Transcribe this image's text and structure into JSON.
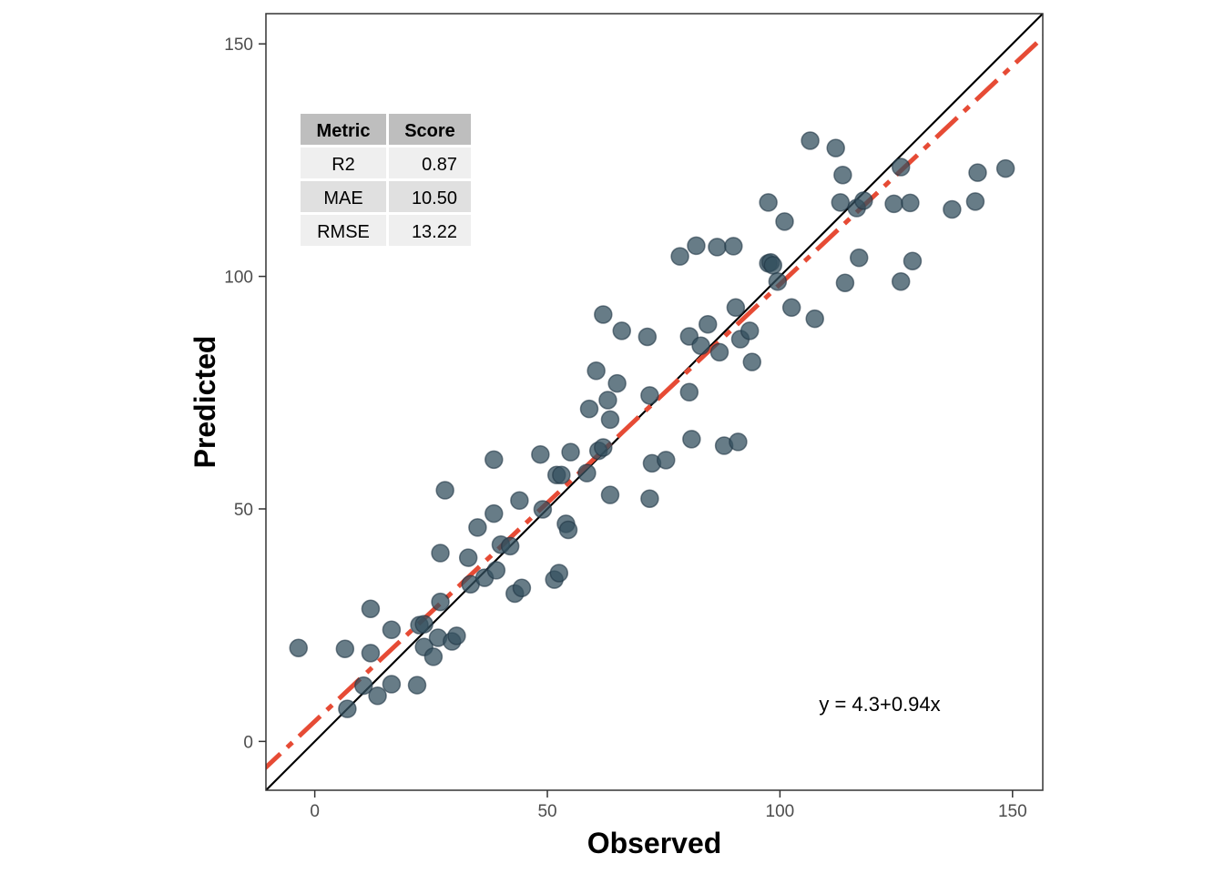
{
  "chart_data": {
    "type": "scatter",
    "title": "",
    "xlabel": "Observed",
    "ylabel": "Predicted",
    "xlim": [
      -10.5,
      156.5
    ],
    "ylim": [
      -10.5,
      156.5
    ],
    "x_ticks": [
      0,
      50,
      100,
      150
    ],
    "y_ticks": [
      0,
      50,
      100,
      150
    ],
    "x_tick_labels": [
      "0",
      "50",
      "100",
      "150"
    ],
    "y_tick_labels": [
      "0",
      "50",
      "100",
      "150"
    ],
    "grid": false,
    "point_color": "#34505f",
    "identity_line_color": "#000000",
    "fit_line_color": "#e64b35",
    "fit": {
      "intercept": 4.3,
      "slope": 0.94,
      "label": "y = 4.3+0.94x"
    },
    "metrics_table": {
      "headers": [
        "Metric",
        "Score"
      ],
      "rows": [
        {
          "metric": "R2",
          "score": "0.87"
        },
        {
          "metric": "MAE",
          "score": "10.50"
        },
        {
          "metric": "RMSE",
          "score": "13.22"
        }
      ]
    },
    "points": [
      [
        -3.5,
        20.1
      ],
      [
        6.5,
        19.9
      ],
      [
        7,
        7
      ],
      [
        10.5,
        12
      ],
      [
        12,
        28.5
      ],
      [
        12,
        19
      ],
      [
        13.5,
        9.8
      ],
      [
        16.5,
        24
      ],
      [
        16.5,
        12.3
      ],
      [
        22,
        12.1
      ],
      [
        22.5,
        25
      ],
      [
        23.5,
        25.2
      ],
      [
        23.5,
        20.3
      ],
      [
        25.5,
        18.2
      ],
      [
        26.5,
        22.3
      ],
      [
        27,
        30
      ],
      [
        27,
        40.5
      ],
      [
        28,
        54
      ],
      [
        29.5,
        21.5
      ],
      [
        30.5,
        22.7
      ],
      [
        33,
        39.5
      ],
      [
        33.5,
        33.8
      ],
      [
        35,
        46
      ],
      [
        36.5,
        35.2
      ],
      [
        38.5,
        49
      ],
      [
        38.5,
        60.6
      ],
      [
        39,
        36.8
      ],
      [
        40,
        42.3
      ],
      [
        42,
        42
      ],
      [
        43,
        31.8
      ],
      [
        44,
        51.8
      ],
      [
        44.5,
        33
      ],
      [
        48.5,
        61.7
      ],
      [
        49,
        49.9
      ],
      [
        51.5,
        34.8
      ],
      [
        52,
        57.3
      ],
      [
        52.5,
        36.2
      ],
      [
        53,
        57.3
      ],
      [
        54,
        46.8
      ],
      [
        54.5,
        45.5
      ],
      [
        55,
        62.2
      ],
      [
        58.5,
        57.7
      ],
      [
        59,
        71.5
      ],
      [
        60.5,
        79.7
      ],
      [
        61,
        62.5
      ],
      [
        62,
        63.2
      ],
      [
        62,
        91.8
      ],
      [
        63,
        73.4
      ],
      [
        63.5,
        69.2
      ],
      [
        63.5,
        53
      ],
      [
        65,
        77
      ],
      [
        66,
        88.3
      ],
      [
        71.5,
        87
      ],
      [
        72,
        74.4
      ],
      [
        72,
        52.2
      ],
      [
        72.5,
        59.8
      ],
      [
        75.5,
        60.5
      ],
      [
        78.5,
        104.3
      ],
      [
        80.5,
        75.1
      ],
      [
        80.5,
        87.1
      ],
      [
        81,
        65
      ],
      [
        82,
        106.6
      ],
      [
        83,
        85.1
      ],
      [
        84.5,
        89.7
      ],
      [
        86.5,
        106.3
      ],
      [
        87,
        83.7
      ],
      [
        88,
        63.6
      ],
      [
        90,
        106.5
      ],
      [
        90.5,
        93.3
      ],
      [
        91,
        64.4
      ],
      [
        91.5,
        86.5
      ],
      [
        93.5,
        88.3
      ],
      [
        94,
        81.6
      ],
      [
        97.5,
        115.9
      ],
      [
        97.5,
        102.8
      ],
      [
        98,
        103
      ],
      [
        98.5,
        102.4
      ],
      [
        99.5,
        98.9
      ],
      [
        101,
        111.8
      ],
      [
        102.5,
        93.3
      ],
      [
        106.5,
        129.2
      ],
      [
        107.5,
        90.9
      ],
      [
        112,
        127.6
      ],
      [
        113,
        115.9
      ],
      [
        113.5,
        121.8
      ],
      [
        114,
        98.6
      ],
      [
        116.5,
        114.7
      ],
      [
        117,
        104
      ],
      [
        118,
        116.3
      ],
      [
        124.5,
        115.6
      ],
      [
        126,
        123.5
      ],
      [
        126,
        98.9
      ],
      [
        128,
        115.8
      ],
      [
        128.5,
        103.3
      ],
      [
        137,
        114.4
      ],
      [
        142,
        116.1
      ],
      [
        142.5,
        122.3
      ],
      [
        148.5,
        123.2
      ]
    ]
  }
}
